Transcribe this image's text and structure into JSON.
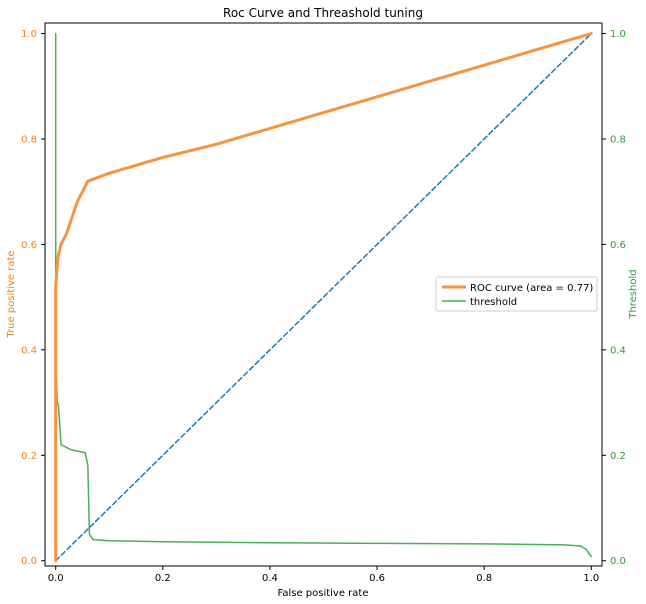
{
  "chart_data": {
    "type": "line",
    "title": "Roc Curve and Threashold tuning",
    "xlabel": "False positive rate",
    "ylabel": "True positive rate",
    "y2label": "Threshold",
    "xlim": [
      -0.02,
      1.02
    ],
    "ylim": [
      -0.01,
      1.02
    ],
    "y2lim": [
      -0.01,
      1.02
    ],
    "xticks": [
      "0.0",
      "0.2",
      "0.4",
      "0.6",
      "0.8",
      "1.0"
    ],
    "yticks": [
      "0.0",
      "0.2",
      "0.4",
      "0.6",
      "0.8",
      "1.0"
    ],
    "y2ticks": [
      "0.0",
      "0.2",
      "0.4",
      "0.6",
      "0.8",
      "1.0"
    ],
    "legend_position": "center-right",
    "colors": {
      "roc": "#f8933f",
      "threshold": "#4caf50",
      "diagonal": "#1f77b4",
      "left_axis": "#ff7f0e",
      "right_axis": "#2ca02c"
    },
    "series": [
      {
        "name": "ROC curve (area = 0.77)",
        "axis": "left",
        "x": [
          0.0,
          0.0,
          0.002,
          0.005,
          0.01,
          0.02,
          0.03,
          0.04,
          0.05,
          0.06,
          0.1,
          0.15,
          0.2,
          0.3,
          0.4,
          0.5,
          0.6,
          0.7,
          0.8,
          0.9,
          1.0
        ],
        "y": [
          0.0,
          0.52,
          0.55,
          0.58,
          0.6,
          0.62,
          0.65,
          0.68,
          0.7,
          0.72,
          0.735,
          0.75,
          0.765,
          0.79,
          0.82,
          0.85,
          0.88,
          0.91,
          0.94,
          0.97,
          1.0
        ]
      },
      {
        "name": "threshold",
        "axis": "right",
        "x": [
          0.0,
          0.0,
          0.001,
          0.003,
          0.005,
          0.01,
          0.03,
          0.055,
          0.06,
          0.063,
          0.07,
          0.1,
          0.2,
          0.4,
          0.6,
          0.8,
          0.95,
          0.98,
          0.99,
          1.0
        ],
        "y": [
          1.0,
          0.55,
          0.35,
          0.3,
          0.295,
          0.22,
          0.21,
          0.205,
          0.18,
          0.05,
          0.04,
          0.038,
          0.036,
          0.034,
          0.033,
          0.032,
          0.03,
          0.028,
          0.022,
          0.008
        ]
      },
      {
        "name": "",
        "axis": "left",
        "dashed": true,
        "x": [
          0.0,
          1.0
        ],
        "y": [
          0.0,
          1.0
        ]
      }
    ]
  }
}
